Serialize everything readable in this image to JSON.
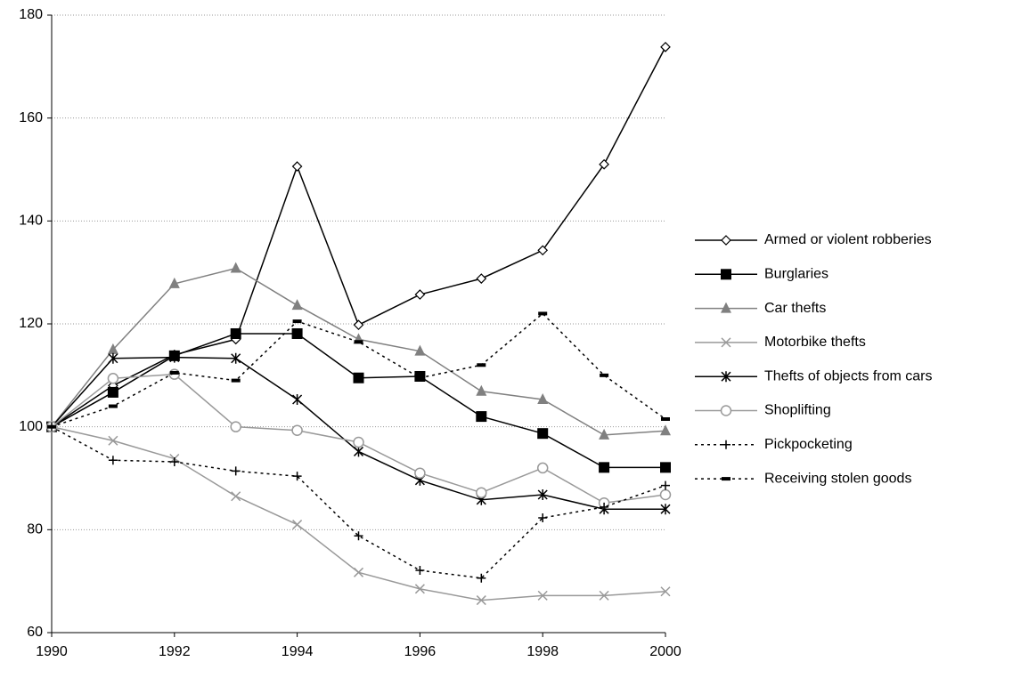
{
  "chart_data": {
    "type": "line",
    "x": [
      1990,
      1991,
      1992,
      1993,
      1994,
      1995,
      1996,
      1997,
      1998,
      1999,
      2000
    ],
    "xlim": [
      1990,
      2000
    ],
    "xticks": [
      1990,
      1992,
      1994,
      1996,
      1998,
      2000
    ],
    "ylim": [
      60,
      180
    ],
    "yticks": [
      60,
      80,
      100,
      120,
      140,
      160,
      180
    ],
    "grid": true,
    "legend": "right",
    "series": [
      {
        "name": "Armed or violent robberies",
        "color": "#000000",
        "marker": "diamond",
        "dash": "solid",
        "values": [
          100,
          108,
          114,
          117,
          150.6,
          119.8,
          125.7,
          128.8,
          134.3,
          151,
          173.8
        ]
      },
      {
        "name": "Burglaries",
        "color": "#000000",
        "marker": "square",
        "dash": "solid",
        "values": [
          100,
          106.7,
          113.8,
          118.1,
          118.1,
          109.5,
          109.8,
          102,
          98.7,
          92.1,
          92.1
        ]
      },
      {
        "name": "Car thefts",
        "color": "#808080",
        "marker": "triangle",
        "dash": "solid",
        "values": [
          100,
          115,
          127.8,
          130.8,
          123.6,
          117,
          114.7,
          106.9,
          105.3,
          98.4,
          99.2
        ]
      },
      {
        "name": "Motorbike thefts",
        "color": "#999999",
        "marker": "x",
        "dash": "solid",
        "values": [
          100,
          97.3,
          93.8,
          86.5,
          81,
          71.7,
          68.5,
          66.3,
          67.2,
          67.2,
          68
        ]
      },
      {
        "name": "Thefts of objects from cars",
        "color": "#000000",
        "marker": "asterisk",
        "dash": "solid",
        "values": [
          100,
          113.3,
          113.5,
          113.3,
          105.3,
          95.2,
          89.6,
          85.8,
          86.8,
          84,
          84
        ]
      },
      {
        "name": "Shoplifting",
        "color": "#999999",
        "marker": "circle",
        "dash": "solid",
        "values": [
          100,
          109.4,
          110.2,
          100,
          99.3,
          97,
          91,
          87.2,
          92,
          85.2,
          86.8
        ]
      },
      {
        "name": "Pickpocketing",
        "color": "#000000",
        "marker": "plus",
        "dash": "dotted",
        "values": [
          100,
          93.5,
          93.2,
          91.4,
          90.4,
          78.8,
          72.1,
          70.6,
          82.3,
          84.4,
          88.6
        ]
      },
      {
        "name": "Receiving stolen goods",
        "color": "#000000",
        "marker": "dash",
        "dash": "dotted",
        "values": [
          100,
          104,
          110.5,
          109,
          120.5,
          116.5,
          109.5,
          112,
          122,
          110,
          101.5
        ]
      }
    ]
  }
}
